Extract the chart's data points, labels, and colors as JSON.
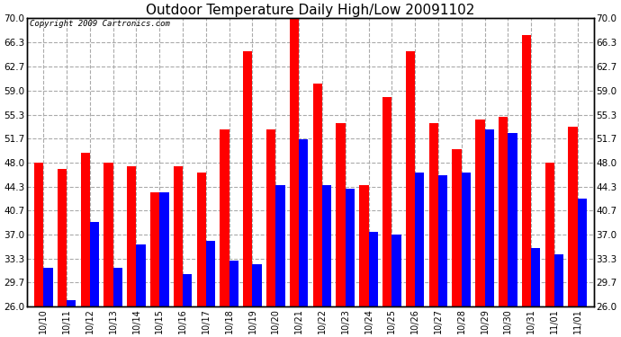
{
  "title": "Outdoor Temperature Daily High/Low 20091102",
  "copyright": "Copyright 2009 Cartronics.com",
  "categories": [
    "10/10",
    "10/11",
    "10/12",
    "10/13",
    "10/14",
    "10/15",
    "10/16",
    "10/17",
    "10/18",
    "10/19",
    "10/20",
    "10/21",
    "10/22",
    "10/23",
    "10/24",
    "10/25",
    "10/26",
    "10/27",
    "10/28",
    "10/29",
    "10/30",
    "10/31",
    "11/01",
    "11/01"
  ],
  "highs": [
    48.0,
    47.0,
    49.5,
    48.0,
    47.5,
    43.5,
    47.5,
    46.5,
    53.0,
    65.0,
    53.0,
    70.0,
    60.0,
    54.0,
    44.5,
    58.0,
    65.0,
    54.0,
    50.0,
    54.5,
    55.0,
    67.5,
    48.0,
    53.5
  ],
  "lows": [
    32.0,
    27.0,
    39.0,
    32.0,
    35.5,
    43.5,
    31.0,
    36.0,
    33.0,
    32.5,
    44.5,
    51.5,
    44.5,
    44.0,
    37.5,
    37.0,
    46.5,
    46.0,
    46.5,
    53.0,
    52.5,
    35.0,
    34.0,
    42.5
  ],
  "high_color": "#ff0000",
  "low_color": "#0000ff",
  "bg_color": "#ffffff",
  "grid_color": "#aaaaaa",
  "yticks": [
    26.0,
    29.7,
    33.3,
    37.0,
    40.7,
    44.3,
    48.0,
    51.7,
    55.3,
    59.0,
    62.7,
    66.3,
    70.0
  ],
  "ymin": 26.0,
  "ymax": 70.0,
  "bar_width": 0.4
}
